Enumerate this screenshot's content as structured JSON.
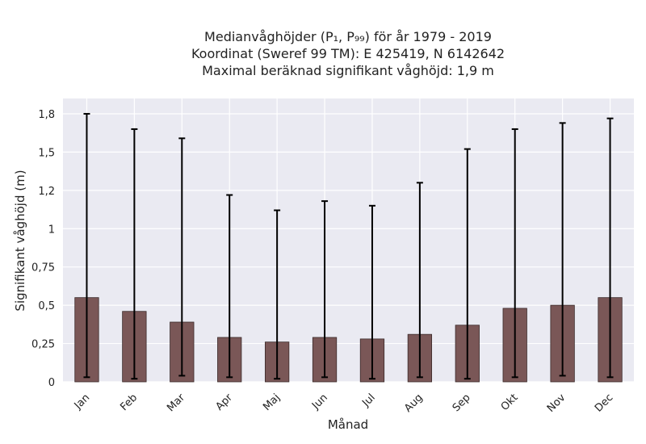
{
  "chart_data": {
    "type": "bar",
    "title_lines": [
      "Medianvåghöjder (P₁, P₉₉) för år 1979 - 2019",
      "Koordinat (Sweref 99 TM): E 425419, N 6142642",
      "Maximal beräknad signifikant våghöjd: 1,9 m"
    ],
    "xlabel": "Månad",
    "ylabel": "Signifikant våghöjd (m)",
    "ylim": [
      0,
      1.85
    ],
    "yticks": [
      0,
      0.25,
      0.5,
      0.75,
      1,
      1.25,
      1.5,
      1.75
    ],
    "ytick_labels": [
      "0",
      "0,25",
      "0,5",
      "0,75",
      "1",
      "1,2",
      "1,5",
      "1,8"
    ],
    "categories": [
      "Jan",
      "Feb",
      "Mar",
      "Apr",
      "Maj",
      "Jun",
      "Jul",
      "Aug",
      "Sep",
      "Okt",
      "Nov",
      "Dec"
    ],
    "values": [
      0.55,
      0.46,
      0.39,
      0.29,
      0.26,
      0.29,
      0.28,
      0.31,
      0.37,
      0.48,
      0.5,
      0.55
    ],
    "err_low": [
      0.03,
      0.02,
      0.04,
      0.03,
      0.02,
      0.03,
      0.02,
      0.03,
      0.02,
      0.03,
      0.04,
      0.03
    ],
    "err_high": [
      1.75,
      1.65,
      1.59,
      1.22,
      1.12,
      1.18,
      1.15,
      1.3,
      1.52,
      1.65,
      1.69,
      1.72
    ],
    "grid": true,
    "bar_color": "#7a5757",
    "background_color": "#eaeaf2"
  }
}
